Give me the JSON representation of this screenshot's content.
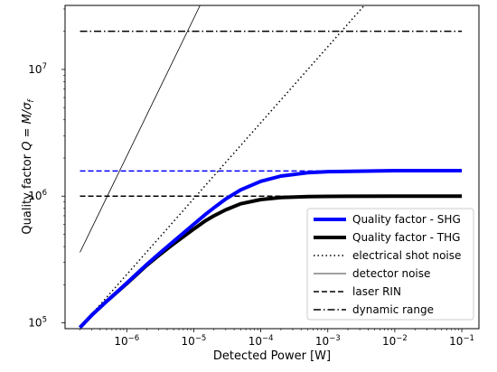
{
  "chart_data": {
    "type": "line",
    "xscale": "log",
    "yscale": "log",
    "xlabel": "Detected Power [W]",
    "ylabel": "Quality factor Q = M/σ_f",
    "ylabel_main": "Quality factor ",
    "ylabel_math": "Q = M/σ",
    "ylabel_sub": "f",
    "xlim": [
      1.2e-07,
      0.18
    ],
    "ylim": [
      90000,
      32000000
    ],
    "xticks": [
      {
        "value": 1e-06,
        "base": "10",
        "exp": "−6"
      },
      {
        "value": 1e-05,
        "base": "10",
        "exp": "−5"
      },
      {
        "value": 0.0001,
        "base": "10",
        "exp": "−4"
      },
      {
        "value": 0.001,
        "base": "10",
        "exp": "−3"
      },
      {
        "value": 0.01,
        "base": "10",
        "exp": "−2"
      },
      {
        "value": 0.1,
        "base": "10",
        "exp": "−1"
      }
    ],
    "yticks": [
      {
        "value": 100000,
        "base": "10",
        "exp": "5"
      },
      {
        "value": 1000000,
        "base": "10",
        "exp": "6"
      },
      {
        "value": 10000000,
        "base": "10",
        "exp": "7"
      }
    ],
    "grid": false,
    "legend_position": "lower-right",
    "series": [
      {
        "name": "Quality factor - SHG",
        "key": "shg",
        "color": "#0000ff",
        "dash": "solid",
        "width": 4,
        "x": [
          2e-07,
          3e-07,
          5e-07,
          1e-06,
          2e-06,
          3e-06,
          5e-06,
          1e-05,
          1.5e-05,
          2e-05,
          3e-05,
          5e-05,
          0.0001,
          0.0002,
          0.0005,
          0.001,
          0.01,
          0.1
        ],
        "y": [
          92000,
          115000,
          148000,
          206000,
          290000,
          350000,
          440000,
          600000,
          720000,
          810000,
          950000,
          1120000,
          1310000,
          1440000,
          1530000,
          1560000,
          1590000,
          1590000
        ]
      },
      {
        "name": "Quality factor - THG",
        "key": "thg",
        "color": "#000000",
        "dash": "solid",
        "width": 4,
        "x": [
          2e-07,
          3e-07,
          5e-07,
          1e-06,
          2e-06,
          3e-06,
          5e-06,
          1e-05,
          1.5e-05,
          2e-05,
          3e-05,
          5e-05,
          0.0001,
          0.0002,
          0.0005,
          0.001,
          0.01,
          0.1
        ],
        "y": [
          92000,
          115000,
          148000,
          204000,
          285000,
          340000,
          420000,
          550000,
          640000,
          700000,
          780000,
          870000,
          940000,
          975000,
          990000,
          995000,
          1000000,
          1000000
        ]
      },
      {
        "name": "electrical shot noise",
        "key": "shot",
        "color": "#000000",
        "dash": "dotted",
        "width": 1.5,
        "x": [
          2e-07,
          0.0035
        ],
        "y": [
          92000,
          32000000
        ]
      },
      {
        "name": "detector noise",
        "key": "detector",
        "color": "#000000",
        "dash": "solid",
        "width": 0.8,
        "x": [
          2e-07,
          1.24e-05
        ],
        "y": [
          360000,
          32000000
        ]
      },
      {
        "name": "laser RIN",
        "key": "rin",
        "color": "#000000",
        "dash": "dashed",
        "width": 1.5,
        "x": [
          2e-07,
          0.1
        ],
        "y": [
          1000000,
          1000000
        ]
      },
      {
        "name": "laser RIN (SHG)",
        "key": "rin_shg",
        "color": "#0000ff",
        "dash": "dashed",
        "width": 1.5,
        "in_legend": false,
        "x": [
          2e-07,
          0.1
        ],
        "y": [
          1580000,
          1580000
        ]
      },
      {
        "name": "dynamic range",
        "key": "dynamic",
        "color": "#000000",
        "dash": "dashdot",
        "width": 1.5,
        "x": [
          2e-07,
          0.1
        ],
        "y": [
          20000000,
          20000000
        ]
      }
    ],
    "legend": [
      "Quality factor - SHG",
      "Quality factor - THG",
      "electrical shot noise",
      "detector noise",
      "laser RIN",
      "dynamic range"
    ]
  }
}
